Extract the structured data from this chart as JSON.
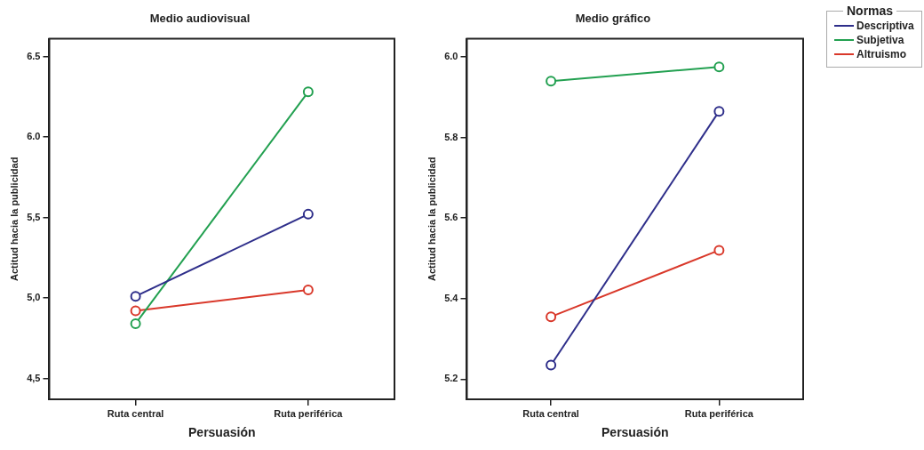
{
  "chart_data": [
    {
      "type": "line",
      "title": "Medio audiovisual",
      "xlabel": "Persuasión",
      "ylabel": "Actitud hacia la publicidad",
      "categories": [
        "Ruta central",
        "Ruta periférica"
      ],
      "ylim": [
        4.37,
        6.61
      ],
      "yticks": [
        {
          "value": 4.5,
          "label": "4,5"
        },
        {
          "value": 5.0,
          "label": "5,0"
        },
        {
          "value": 5.5,
          "label": "5,5"
        },
        {
          "value": 6.0,
          "label": "6.0"
        },
        {
          "value": 6.5,
          "label": "6.5"
        }
      ],
      "marker": "circle",
      "grid": false,
      "legend": false,
      "series": [
        {
          "color": "#2e2e8a",
          "values": [
            5.01,
            5.52
          ]
        },
        {
          "color": "#22a050",
          "values": [
            4.84,
            6.28
          ]
        },
        {
          "color": "#d9382a",
          "values": [
            4.92,
            5.05
          ]
        }
      ]
    },
    {
      "type": "line",
      "title": "Medio gráfico",
      "xlabel": "Persuasión",
      "ylabel": "Actitud hacia la publicidad",
      "categories": [
        "Ruta central",
        "Ruta periférica"
      ],
      "ylim": [
        5.15,
        6.045
      ],
      "yticks": [
        5.2,
        5.4,
        5.6,
        5.8,
        {
          "value": 6.0,
          "label": "6.0"
        }
      ],
      "marker": "circle",
      "grid": false,
      "legend": "right",
      "legend_title": "Normas",
      "series": [
        {
          "name": "Descriptiva",
          "color": "#2e2e8a",
          "values": [
            5.235,
            5.865
          ]
        },
        {
          "name": "Subjetiva",
          "color": "#22a050",
          "values": [
            5.94,
            5.975
          ]
        },
        {
          "name": "Altruismo",
          "color": "#d9382a",
          "values": [
            5.355,
            5.52
          ]
        }
      ]
    }
  ]
}
